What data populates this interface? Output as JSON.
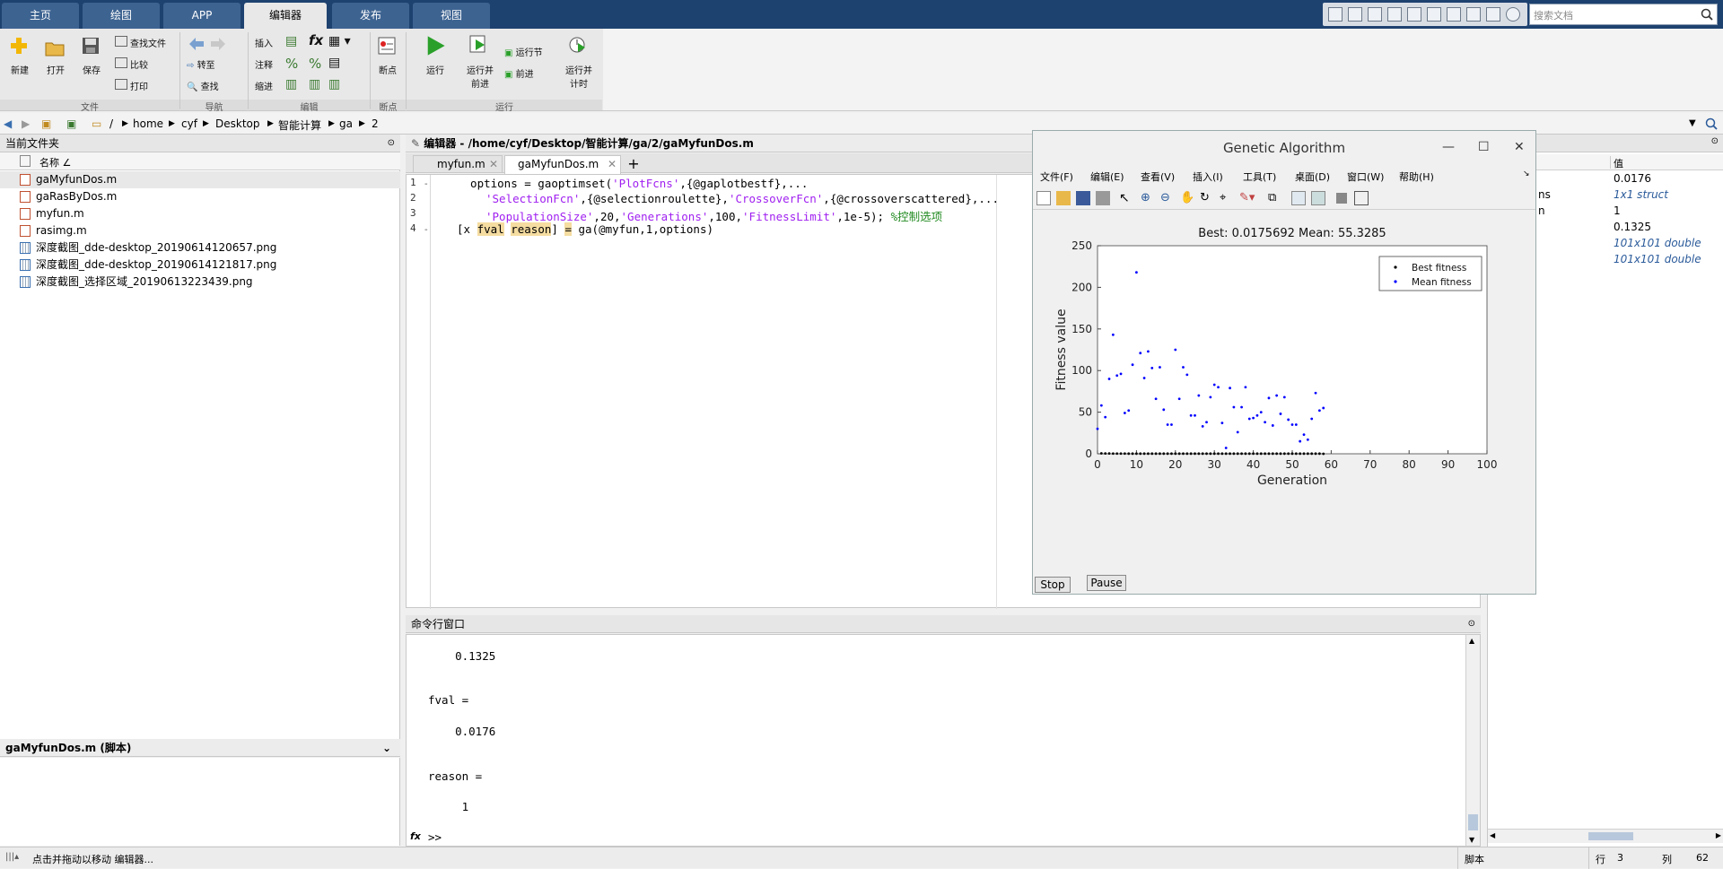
{
  "tabs": [
    "主页",
    "绘图",
    "APP",
    "编辑器",
    "发布",
    "视图"
  ],
  "active_tab": "编辑器",
  "search": {
    "placeholder": "搜索文档"
  },
  "ribbon": {
    "new": "新建",
    "open": "打开",
    "save": "保存",
    "find_files": "查找文件",
    "compare": "比较",
    "print": "打印",
    "goto": "转至",
    "find": "查找",
    "insert": "插入",
    "comment": "注释",
    "indent": "缩进",
    "breakpoints": "断点",
    "run": "运行",
    "run_and_advance_1": "运行并",
    "run_and_advance_2": "前进",
    "run_section": "运行节",
    "advance": "前进",
    "run_and_time_1": "运行并",
    "run_and_time_2": "计时",
    "groups": {
      "file": "文件",
      "navigate": "导航",
      "edit": "编辑",
      "breakpoints": "断点",
      "run": "运行"
    }
  },
  "address": {
    "crumbs": [
      "/",
      "home",
      "cyf",
      "Desktop",
      "智能计算",
      "ga",
      "2"
    ]
  },
  "current_folder": {
    "title": "当前文件夹",
    "column_name": "名称 ∠",
    "files": [
      "gaMyfunDos.m",
      "gaRasByDos.m",
      "myfun.m",
      "rasimg.m",
      "深度截图_dde-desktop_20190614120657.png",
      "深度截图_dde-desktop_20190614121817.png",
      "深度截图_选择区域_20190613223439.png"
    ],
    "selected": "gaMyfunDos.m"
  },
  "detail": {
    "title": "gaMyfunDos.m (脚本)"
  },
  "editor": {
    "title": "编辑器 - /home/cyf/Desktop/智能计算/ga/2/gaMyfunDos.m",
    "tabs": [
      "myfun.m",
      "gaMyfunDos.m"
    ],
    "active_tab": "gaMyfunDos.m",
    "line_numbers": [
      "1",
      "2",
      "3",
      "4"
    ],
    "code": {
      "l1a": "  options = gaoptimset(",
      "l1s": "'PlotFcns'",
      "l1b": ",{@gaplotbestf},...",
      "l2s1": "'SelectionFcn'",
      "l2b": ",{@selectionroulette},",
      "l2s2": "'CrossoverFcn'",
      "l2c": ",{@crossoverscattered},...",
      "l3s1": "'PopulationSize'",
      "l3b": ",20,",
      "l3s2": "'Generations'",
      "l3c": ",100,",
      "l3s3": "'FitnessLimit'",
      "l3d": ",1e-5); ",
      "l3cmt": "%控制选项",
      "l4a": "[x ",
      "l4h1": "fval",
      "l4sp": " ",
      "l4h2": "reason",
      "l4b": "] ",
      "l4h3": "=",
      "l4c": " ga(@myfun,1,options)"
    }
  },
  "command_window": {
    "title": "命令行窗口",
    "lines": [
      "    0.1325",
      "fval =",
      "    0.0176",
      "reason =",
      "     1"
    ],
    "prompt": ">>",
    "fx": "fx"
  },
  "workspace": {
    "col_value": "值",
    "rows": [
      {
        "name": "",
        "value": "0.0176"
      },
      {
        "name": "ns",
        "value": "1x1 struct"
      },
      {
        "name": "n",
        "value": "1"
      },
      {
        "name": "",
        "value": "0.1325"
      },
      {
        "name": "",
        "value": "101x101 double"
      },
      {
        "name": "",
        "value": "101x101 double"
      }
    ]
  },
  "status": {
    "text": "点击并拖动以移动 编辑器...",
    "mode": "脚本",
    "row_label": "行",
    "row": "3",
    "col_label": "列",
    "col": "62"
  },
  "figure": {
    "window_title": "Genetic Algorithm",
    "menu": [
      "文件(F)",
      "编辑(E)",
      "查看(V)",
      "插入(I)",
      "工具(T)",
      "桌面(D)",
      "窗口(W)",
      "帮助(H)"
    ],
    "stop": "Stop",
    "pause": "Pause"
  },
  "chart_data": {
    "type": "scatter",
    "title": "Best: 0.0175692 Mean: 55.3285",
    "xlabel": "Generation",
    "ylabel": "Fitness value",
    "xlim": [
      0,
      100
    ],
    "ylim": [
      0,
      250
    ],
    "xticks": [
      0,
      10,
      20,
      30,
      40,
      50,
      60,
      70,
      80,
      90,
      100
    ],
    "yticks": [
      0,
      50,
      100,
      150,
      200,
      250
    ],
    "legend_position": "top-right",
    "series": [
      {
        "name": "Best fitness",
        "color": "#000000",
        "x": [
          1,
          2,
          3,
          4,
          5,
          6,
          7,
          8,
          9,
          10,
          11,
          12,
          13,
          14,
          15,
          16,
          17,
          18,
          19,
          20,
          21,
          22,
          23,
          24,
          25,
          26,
          27,
          28,
          29,
          30,
          31,
          32,
          33,
          34,
          35,
          36,
          37,
          38,
          39,
          40,
          41,
          42,
          43,
          44,
          45,
          46,
          47,
          48,
          49,
          50,
          51,
          52,
          53,
          54,
          55,
          56,
          57,
          58
        ],
        "y": [
          0.5,
          0.4,
          0.4,
          0.3,
          0.3,
          0.3,
          0.3,
          0.2,
          0.2,
          0.2,
          0.2,
          0.2,
          0.2,
          0.2,
          0.2,
          0.2,
          0.2,
          0.2,
          0.2,
          0.2,
          0.2,
          0.2,
          0.2,
          0.2,
          0.2,
          0.2,
          0.2,
          0.2,
          0.2,
          0.2,
          0.2,
          0.2,
          0.2,
          0.2,
          0.2,
          0.2,
          0.2,
          0.2,
          0.2,
          0.2,
          0.2,
          0.2,
          0.2,
          0.2,
          0.2,
          0.2,
          0.2,
          0.2,
          0.2,
          0.2,
          0.2,
          0.2,
          0.2,
          0.2,
          0.2,
          0.2,
          0.2,
          0.0176
        ]
      },
      {
        "name": "Mean fitness",
        "color": "#0000ff",
        "x": [
          0,
          1,
          2,
          3,
          4,
          5,
          6,
          7,
          8,
          9,
          10,
          11,
          12,
          13,
          14,
          15,
          16,
          17,
          18,
          19,
          20,
          21,
          22,
          23,
          24,
          25,
          26,
          27,
          28,
          29,
          30,
          31,
          32,
          33,
          34,
          35,
          36,
          37,
          38,
          39,
          40,
          41,
          42,
          43,
          44,
          45,
          46,
          47,
          48,
          49,
          50,
          51,
          52,
          53,
          54,
          55,
          56,
          57,
          58
        ],
        "y": [
          30,
          58,
          44,
          90,
          143,
          94,
          96,
          49,
          52,
          107,
          218,
          121,
          91,
          123,
          103,
          66,
          104,
          53,
          35,
          35,
          125,
          66,
          104,
          95,
          46,
          46,
          70,
          33,
          38,
          68,
          83,
          80,
          37,
          7,
          79,
          56,
          26,
          56,
          80,
          42,
          43,
          46,
          50,
          38,
          67,
          34,
          70,
          48,
          68,
          41,
          35,
          35,
          15,
          23,
          17,
          42,
          73,
          52,
          55
        ]
      }
    ]
  }
}
